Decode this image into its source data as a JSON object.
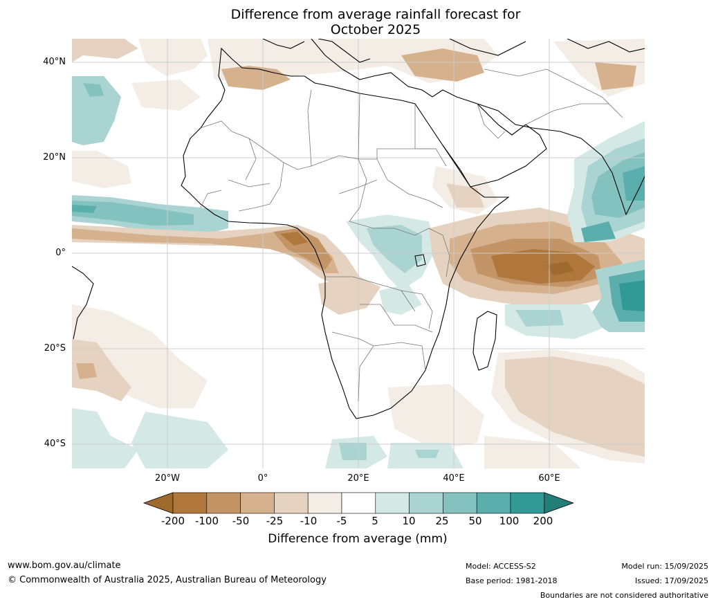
{
  "title_line1": "Difference from average rainfall forecast for",
  "title_line2": "October 2025",
  "lat_labels": [
    "40°N",
    "20°N",
    "0°",
    "20°S",
    "40°S"
  ],
  "lon_labels": [
    "20°W",
    "0°",
    "20°E",
    "40°E",
    "60°E"
  ],
  "colorbar": {
    "title": "Difference from average (mm)",
    "ticks": [
      "-200",
      "-100",
      "-50",
      "-25",
      "-10",
      "-5",
      "5",
      "10",
      "25",
      "50",
      "100",
      "200"
    ],
    "colors": [
      "#9e6a2e",
      "#b0773d",
      "#c29466",
      "#d5b18e",
      "#e5d2c0",
      "#f3ede6",
      "#ffffff",
      "#d4e8e6",
      "#aad4d2",
      "#84c2c0",
      "#5aaeac",
      "#329a96",
      "#237e79"
    ]
  },
  "footer": {
    "website": "www.bom.gov.au/climate",
    "copyright": "© Commonwealth of Australia 2025, Australian Bureau of Meteorology",
    "model": "Model: ACCESS-S2",
    "base_period": "Base period: 1981-2018",
    "model_run": "Model run: 15/09/2025",
    "issued": "Issued: 17/09/2025",
    "disclaimer": "Boundaries are not considered authoritative"
  }
}
